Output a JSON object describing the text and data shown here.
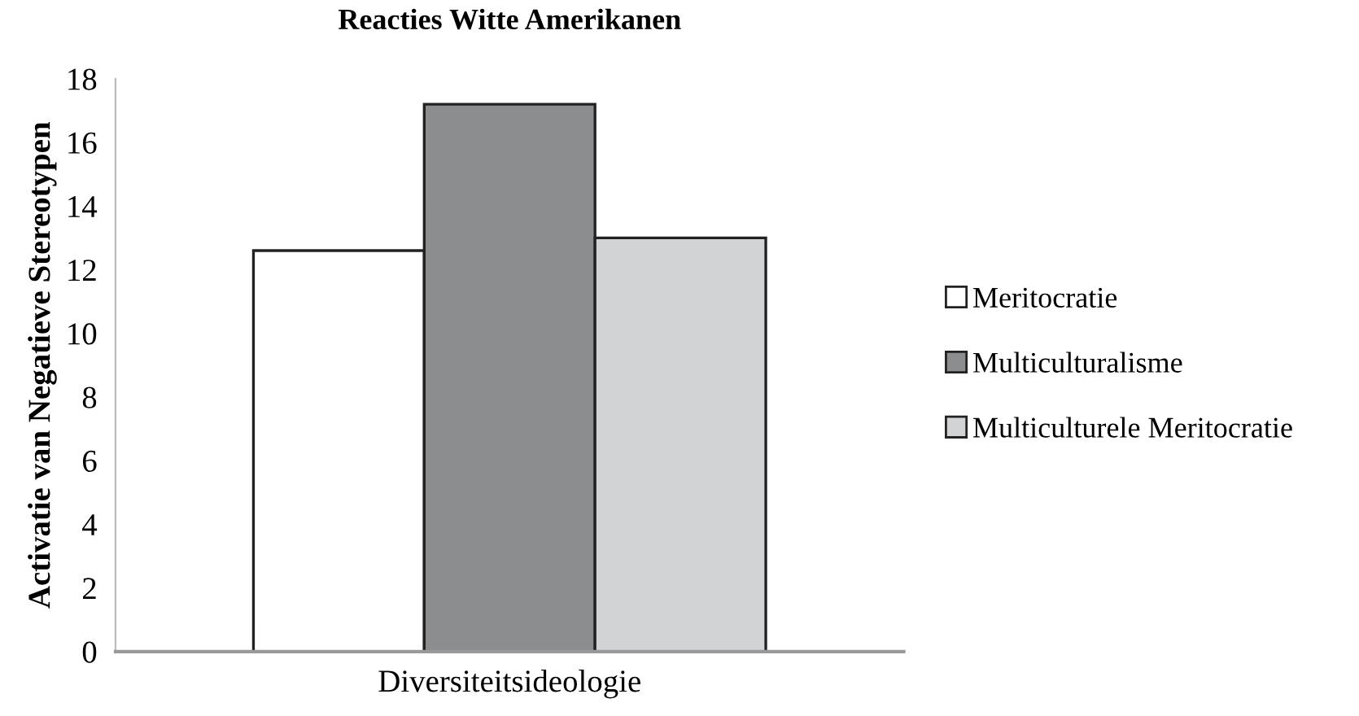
{
  "chart_data": {
    "type": "bar",
    "title": "Reacties Witte Amerikanen",
    "ylabel": "Activatie van Negatieve Stereotypen",
    "categories": [
      "Diversiteitsideologie"
    ],
    "series": [
      {
        "name": "Meritocratie",
        "color": "#ffffff",
        "values": [
          12.6
        ]
      },
      {
        "name": "Multiculturalisme",
        "color": "#8c8d8f",
        "values": [
          17.2
        ]
      },
      {
        "name": "Multiculturele Meritocratie",
        "color": "#d2d3d5",
        "values": [
          13.0
        ]
      }
    ],
    "ylim": [
      0,
      18
    ],
    "yticks": [
      0,
      2,
      4,
      6,
      8,
      10,
      12,
      14,
      16,
      18
    ],
    "grid": false,
    "legend": "right"
  }
}
